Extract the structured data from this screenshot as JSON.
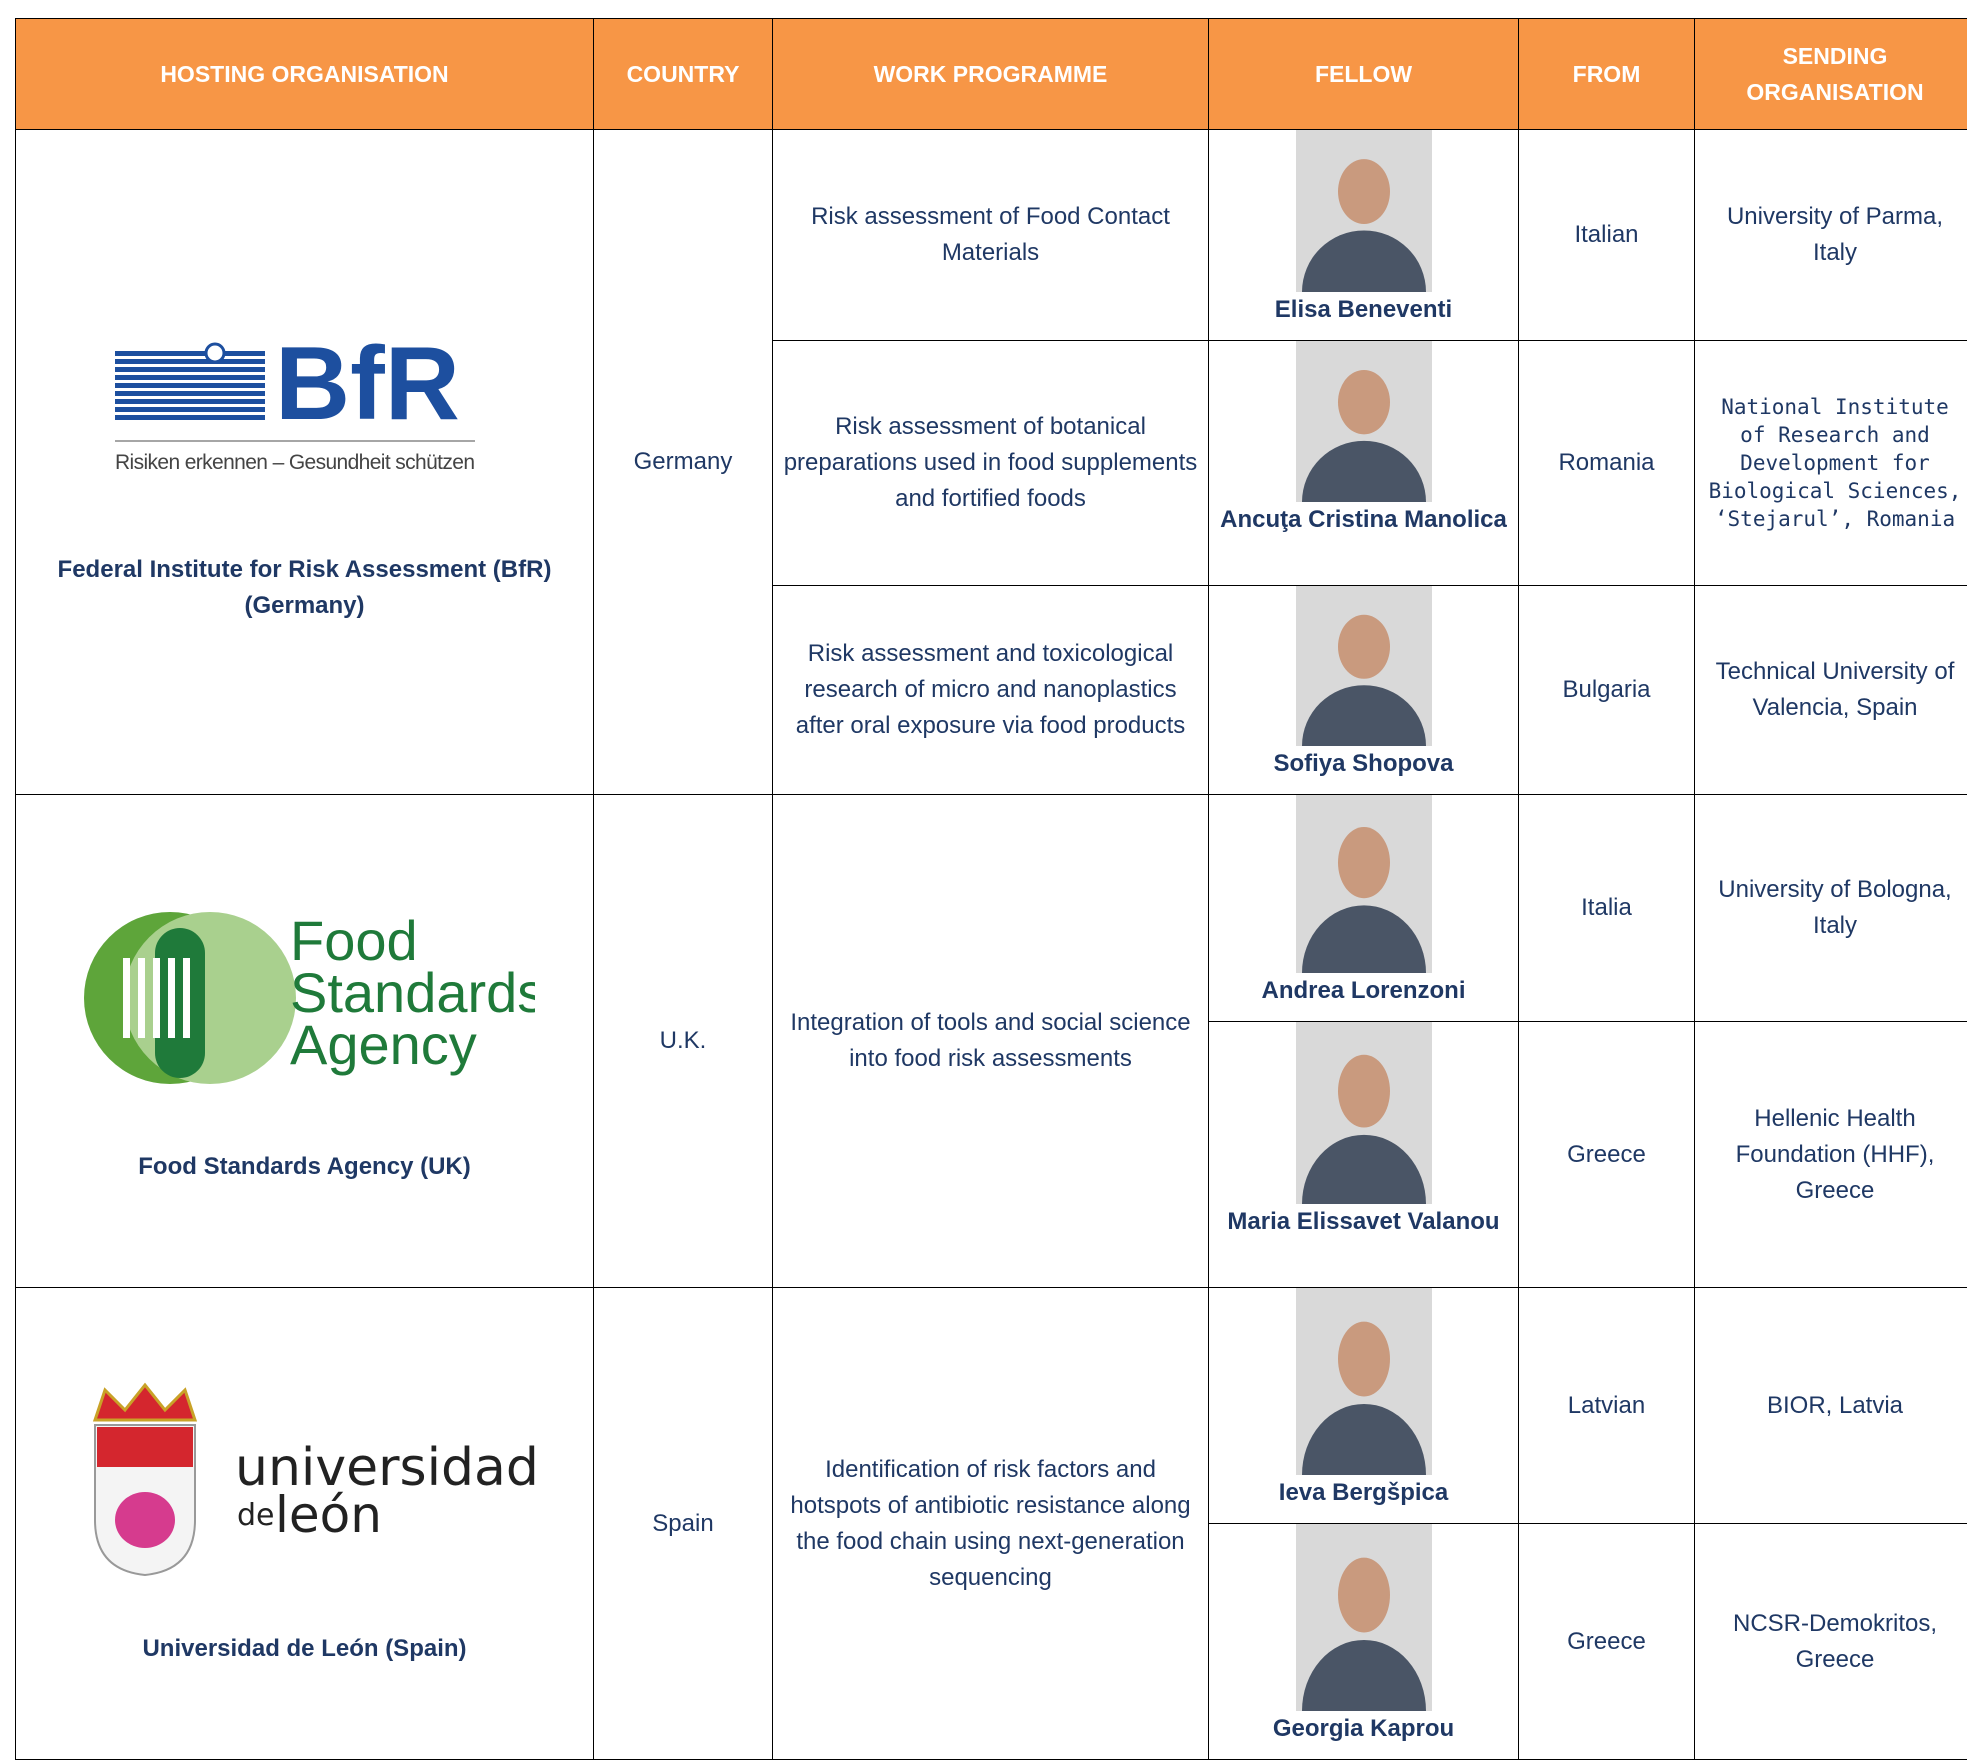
{
  "header": [
    "HOSTING ORGANISATION",
    "COUNTRY",
    "WORK PROGRAMME",
    "FELLOW",
    "FROM",
    "SENDING ORGANISATION"
  ],
  "hosts": [
    {
      "logo": [
        "BfR",
        "Risiken erkennen – Gesundheit schützen"
      ],
      "name": "Federal Institute for Risk Assessment (BfR) (Germany)",
      "country": "Germany",
      "programmes": [
        {
          "text": "Risk assessment of Food Contact Materials",
          "fellows": [
            {
              "name": "Elisa Beneventi",
              "from": "Italian",
              "sending": "University of Parma, Italy"
            }
          ]
        },
        {
          "text": "Risk assessment of botanical preparations used in food supplements and fortified foods",
          "fellows": [
            {
              "name": "Ancuţa Cristina Manolica",
              "from": "Romania",
              "sending": "National Institute of Research and Development for Biological Sciences, ‘Stejarul’, Romania"
            }
          ]
        },
        {
          "text": "Risk assessment and toxicological research of micro and nanoplastics after oral exposure via food products",
          "fellows": [
            {
              "name": "Sofiya Shopova",
              "from": "Bulgaria",
              "sending": "Technical University of Valencia, Spain"
            }
          ]
        }
      ]
    },
    {
      "logo": [
        "Food",
        "Standards",
        "Agency"
      ],
      "name": "Food Standards Agency (UK)",
      "country": "U.K.",
      "programmes": [
        {
          "text": "Integration of tools and social science into food risk assessments",
          "fellows": [
            {
              "name": "Andrea Lorenzoni",
              "from": "Italia",
              "sending": "University of Bologna, Italy"
            },
            {
              "name": "Maria Elissavet Valanou",
              "from": "Greece",
              "sending": "Hellenic Health Foundation (HHF), Greece"
            }
          ]
        }
      ]
    },
    {
      "logo": [
        "universidad",
        "de",
        "león"
      ],
      "name": "Universidad de León (Spain)",
      "country": "Spain",
      "programmes": [
        {
          "text": "Identification of risk factors and hotspots of antibiotic resistance along the food chain using next-generation sequencing",
          "fellows": [
            {
              "name": "Ieva Bergšpica",
              "from": "Latvian",
              "sending": "BIOR, Latvia"
            },
            {
              "name": "Georgia Kaprou",
              "from": "Greece",
              "sending": "NCSR-Demokritos, Greece"
            }
          ]
        }
      ]
    }
  ]
}
